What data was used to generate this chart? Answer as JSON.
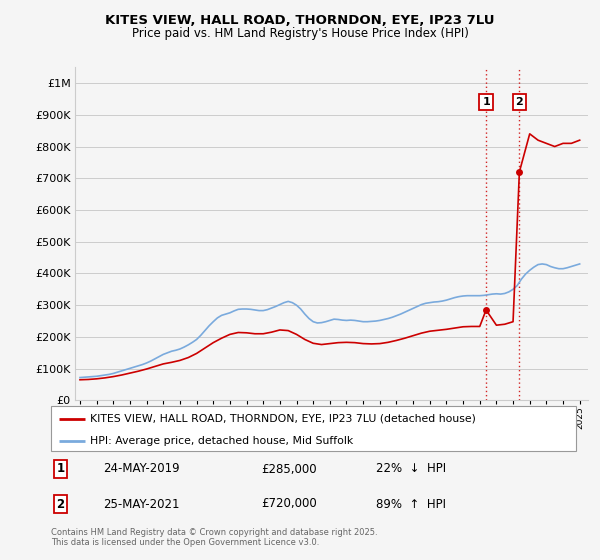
{
  "title": "KITES VIEW, HALL ROAD, THORNDON, EYE, IP23 7LU",
  "subtitle": "Price paid vs. HM Land Registry's House Price Index (HPI)",
  "ylim": [
    0,
    1050000
  ],
  "yticks": [
    0,
    100000,
    200000,
    300000,
    400000,
    500000,
    600000,
    700000,
    800000,
    900000,
    1000000
  ],
  "ytick_labels": [
    "£0",
    "£100K",
    "£200K",
    "£300K",
    "£400K",
    "£500K",
    "£600K",
    "£700K",
    "£800K",
    "£900K",
    "£1M"
  ],
  "hpi_color": "#7aaadd",
  "property_color": "#cc0000",
  "vline_color": "#cc0000",
  "background_color": "#f5f5f5",
  "grid_color": "#cccccc",
  "transactions": [
    {
      "label": "1",
      "date": 2019.38,
      "price": 285000,
      "pct": "22%",
      "direction": "↓",
      "date_str": "24-MAY-2019"
    },
    {
      "label": "2",
      "date": 2021.38,
      "price": 720000,
      "pct": "89%",
      "direction": "↑",
      "date_str": "25-MAY-2021"
    }
  ],
  "legend_property": "KITES VIEW, HALL ROAD, THORNDON, EYE, IP23 7LU (detached house)",
  "legend_hpi": "HPI: Average price, detached house, Mid Suffolk",
  "footnote": "Contains HM Land Registry data © Crown copyright and database right 2025.\nThis data is licensed under the Open Government Licence v3.0.",
  "hpi_data_x": [
    1995.0,
    1995.25,
    1995.5,
    1995.75,
    1996.0,
    1996.25,
    1996.5,
    1996.75,
    1997.0,
    1997.25,
    1997.5,
    1997.75,
    1998.0,
    1998.25,
    1998.5,
    1998.75,
    1999.0,
    1999.25,
    1999.5,
    1999.75,
    2000.0,
    2000.25,
    2000.5,
    2000.75,
    2001.0,
    2001.25,
    2001.5,
    2001.75,
    2002.0,
    2002.25,
    2002.5,
    2002.75,
    2003.0,
    2003.25,
    2003.5,
    2003.75,
    2004.0,
    2004.25,
    2004.5,
    2004.75,
    2005.0,
    2005.25,
    2005.5,
    2005.75,
    2006.0,
    2006.25,
    2006.5,
    2006.75,
    2007.0,
    2007.25,
    2007.5,
    2007.75,
    2008.0,
    2008.25,
    2008.5,
    2008.75,
    2009.0,
    2009.25,
    2009.5,
    2009.75,
    2010.0,
    2010.25,
    2010.5,
    2010.75,
    2011.0,
    2011.25,
    2011.5,
    2011.75,
    2012.0,
    2012.25,
    2012.5,
    2012.75,
    2013.0,
    2013.25,
    2013.5,
    2013.75,
    2014.0,
    2014.25,
    2014.5,
    2014.75,
    2015.0,
    2015.25,
    2015.5,
    2015.75,
    2016.0,
    2016.25,
    2016.5,
    2016.75,
    2017.0,
    2017.25,
    2017.5,
    2017.75,
    2018.0,
    2018.25,
    2018.5,
    2018.75,
    2019.0,
    2019.25,
    2019.5,
    2019.75,
    2020.0,
    2020.25,
    2020.5,
    2020.75,
    2021.0,
    2021.25,
    2021.5,
    2021.75,
    2022.0,
    2022.25,
    2022.5,
    2022.75,
    2023.0,
    2023.25,
    2023.5,
    2023.75,
    2024.0,
    2024.25,
    2024.5,
    2024.75,
    2025.0
  ],
  "hpi_data_y": [
    72000,
    73000,
    74000,
    75000,
    76000,
    78000,
    80000,
    82000,
    85000,
    89000,
    93000,
    97000,
    101000,
    105000,
    109000,
    113000,
    118000,
    124000,
    131000,
    138000,
    145000,
    150000,
    155000,
    158000,
    162000,
    168000,
    175000,
    183000,
    192000,
    205000,
    220000,
    235000,
    248000,
    260000,
    268000,
    272000,
    276000,
    282000,
    287000,
    288000,
    288000,
    287000,
    285000,
    283000,
    283000,
    286000,
    291000,
    296000,
    302000,
    308000,
    312000,
    308000,
    300000,
    288000,
    272000,
    258000,
    248000,
    244000,
    245000,
    248000,
    252000,
    256000,
    255000,
    253000,
    252000,
    253000,
    252000,
    250000,
    248000,
    248000,
    249000,
    250000,
    252000,
    255000,
    258000,
    262000,
    267000,
    272000,
    278000,
    284000,
    290000,
    296000,
    302000,
    306000,
    308000,
    310000,
    311000,
    313000,
    316000,
    320000,
    324000,
    327000,
    329000,
    330000,
    330000,
    330000,
    330000,
    331000,
    333000,
    335000,
    336000,
    335000,
    337000,
    342000,
    350000,
    362000,
    382000,
    398000,
    410000,
    420000,
    428000,
    430000,
    428000,
    422000,
    418000,
    415000,
    415000,
    418000,
    422000,
    426000,
    430000
  ],
  "property_data_x": [
    1995.0,
    1995.5,
    1996.0,
    1996.5,
    1997.0,
    1997.5,
    1998.0,
    1998.5,
    1999.0,
    1999.5,
    2000.0,
    2000.5,
    2001.0,
    2001.5,
    2002.0,
    2002.5,
    2003.0,
    2003.5,
    2004.0,
    2004.5,
    2005.0,
    2005.5,
    2006.0,
    2006.5,
    2007.0,
    2007.5,
    2008.0,
    2008.5,
    2009.0,
    2009.5,
    2010.0,
    2010.5,
    2011.0,
    2011.5,
    2012.0,
    2012.5,
    2013.0,
    2013.5,
    2014.0,
    2014.5,
    2015.0,
    2015.5,
    2016.0,
    2016.5,
    2017.0,
    2017.5,
    2018.0,
    2018.5,
    2019.0,
    2019.38,
    2020.0,
    2020.5,
    2021.0,
    2021.38,
    2022.0,
    2022.5,
    2023.0,
    2023.5,
    2024.0,
    2024.5,
    2025.0
  ],
  "property_data_y": [
    65000,
    66000,
    68000,
    71000,
    75000,
    80000,
    86000,
    92000,
    99000,
    107000,
    115000,
    120000,
    126000,
    135000,
    148000,
    165000,
    182000,
    196000,
    208000,
    214000,
    213000,
    210000,
    210000,
    215000,
    222000,
    220000,
    208000,
    192000,
    180000,
    176000,
    179000,
    182000,
    183000,
    182000,
    179000,
    178000,
    179000,
    183000,
    189000,
    196000,
    204000,
    212000,
    218000,
    221000,
    224000,
    228000,
    232000,
    233000,
    233000,
    285000,
    237000,
    240000,
    248000,
    720000,
    840000,
    820000,
    810000,
    800000,
    810000,
    810000,
    820000
  ]
}
